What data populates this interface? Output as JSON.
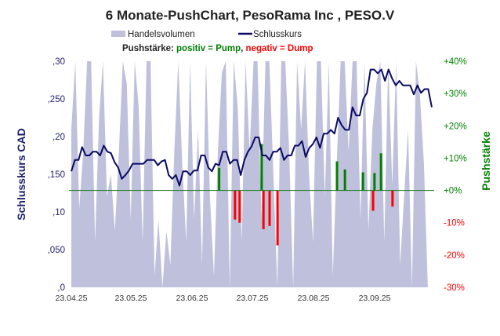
{
  "chart_data": {
    "type": "line",
    "title": "6 Monate-PushChart, PesoRama Inc , PESO.V",
    "legend": {
      "volume": "Handelsvolumen",
      "price": "Schlusskurs",
      "placement": "top"
    },
    "subtitle": {
      "prefix": "Pushstärke: ",
      "positive": "positiv = Pump",
      "sep": ", ",
      "negative": "negativ = Dump"
    },
    "ylabel_left": "Schlusskurs CAD",
    "ylabel_right": "Pushstärke",
    "ylim_left": [
      0,
      0.3
    ],
    "ylim_right": [
      -30,
      40
    ],
    "left_ticks": [
      ",0",
      ",050",
      ",10",
      ",150",
      ",20",
      ",250",
      ",30"
    ],
    "right_ticks": [
      "-30%",
      "-20%",
      "-10%",
      "+0%",
      "+10%",
      "+20%",
      "+30%",
      "+40%"
    ],
    "x_ticks": [
      "23.04.25",
      "23.05.25",
      "23.06.25",
      "23.07.25",
      "23.08.25",
      "23.09.25"
    ],
    "colors": {
      "volume": "#bfc0dc",
      "price": "#0a0a64",
      "pump": "#008000",
      "dump": "#ff0000",
      "axis_left": "#1f1f6e"
    },
    "price": [
      0.154,
      0.169,
      0.169,
      0.186,
      0.175,
      0.175,
      0.18,
      0.18,
      0.175,
      0.188,
      0.18,
      0.178,
      0.166,
      0.159,
      0.144,
      0.149,
      0.155,
      0.164,
      0.164,
      0.164,
      0.164,
      0.169,
      0.169,
      0.169,
      0.162,
      0.167,
      0.169,
      0.149,
      0.144,
      0.149,
      0.135,
      0.154,
      0.154,
      0.149,
      0.155,
      0.155,
      0.175,
      0.175,
      0.159,
      0.154,
      0.164,
      0.162,
      0.18,
      0.18,
      0.164,
      0.169,
      0.169,
      0.149,
      0.169,
      0.18,
      0.187,
      0.199,
      0.199,
      0.175,
      0.175,
      0.169,
      0.18,
      0.18,
      0.185,
      0.169,
      0.175,
      0.175,
      0.188,
      0.188,
      0.194,
      0.173,
      0.185,
      0.19,
      0.199,
      0.185,
      0.204,
      0.204,
      0.209,
      0.204,
      0.225,
      0.215,
      0.209,
      0.209,
      0.239,
      0.228,
      0.228,
      0.25,
      0.258,
      0.289,
      0.289,
      0.284,
      0.289,
      0.274,
      0.289,
      0.277,
      0.268,
      0.274,
      0.268,
      0.268,
      0.268,
      0.256,
      0.268,
      0.258,
      0.263,
      0.263,
      0.239
    ],
    "volume_relative": [
      70,
      100,
      35,
      60,
      100,
      100,
      20,
      75,
      100,
      40,
      50,
      25,
      60,
      100,
      90,
      30,
      100,
      80,
      20,
      100,
      100,
      5,
      30,
      0,
      25,
      10,
      60,
      100,
      55,
      20,
      100,
      30,
      70,
      10,
      100,
      40,
      5,
      60,
      95,
      100,
      0,
      100,
      80,
      20,
      100,
      60,
      100,
      100,
      30,
      100,
      100,
      50,
      0,
      100,
      100,
      60,
      0,
      100,
      70,
      100,
      50,
      20,
      100,
      100,
      40,
      100,
      5,
      55,
      100,
      100,
      60,
      100,
      100,
      30,
      100,
      25,
      70,
      90,
      100,
      20,
      100,
      45,
      100,
      10,
      40,
      70,
      0,
      100,
      85,
      55,
      0,
      0
    ],
    "push": [
      {
        "pos": 0.41,
        "value": 7
      },
      {
        "pos": 0.454,
        "value": -9
      },
      {
        "pos": 0.467,
        "value": -10
      },
      {
        "pos": 0.528,
        "value": 14.4
      },
      {
        "pos": 0.533,
        "value": -12
      },
      {
        "pos": 0.55,
        "value": -11
      },
      {
        "pos": 0.572,
        "value": -17
      },
      {
        "pos": 0.737,
        "value": 9
      },
      {
        "pos": 0.759,
        "value": 6.5
      },
      {
        "pos": 0.809,
        "value": 5.6
      },
      {
        "pos": 0.837,
        "value": -6.3
      },
      {
        "pos": 0.841,
        "value": 5.4
      },
      {
        "pos": 0.859,
        "value": 11.5
      },
      {
        "pos": 0.891,
        "value": -5
      }
    ]
  }
}
